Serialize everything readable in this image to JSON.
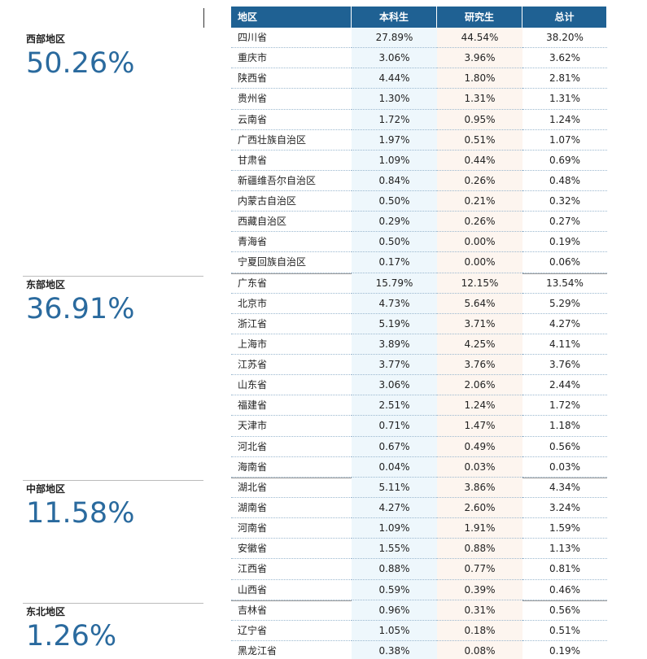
{
  "table": {
    "header": [
      "地区",
      "本科生",
      "研究生",
      "总计"
    ],
    "groups": [
      {
        "name": "西部地区",
        "share": "50.26%",
        "rows": [
          [
            "四川省",
            "27.89%",
            "44.54%",
            "38.20%"
          ],
          [
            "重庆市",
            "3.06%",
            "3.96%",
            "3.62%"
          ],
          [
            "陕西省",
            "4.44%",
            "1.80%",
            "2.81%"
          ],
          [
            "贵州省",
            "1.30%",
            "1.31%",
            "1.31%"
          ],
          [
            "云南省",
            "1.72%",
            "0.95%",
            "1.24%"
          ],
          [
            "广西壮族自治区",
            "1.97%",
            "0.51%",
            "1.07%"
          ],
          [
            "甘肃省",
            "1.09%",
            "0.44%",
            "0.69%"
          ],
          [
            "新疆维吾尔自治区",
            "0.84%",
            "0.26%",
            "0.48%"
          ],
          [
            "内蒙古自治区",
            "0.50%",
            "0.21%",
            "0.32%"
          ],
          [
            "西藏自治区",
            "0.29%",
            "0.26%",
            "0.27%"
          ],
          [
            "青海省",
            "0.50%",
            "0.00%",
            "0.19%"
          ],
          [
            "宁夏回族自治区",
            "0.17%",
            "0.00%",
            "0.06%"
          ]
        ]
      },
      {
        "name": "东部地区",
        "share": "36.91%",
        "rows": [
          [
            "广东省",
            "15.79%",
            "12.15%",
            "13.54%"
          ],
          [
            "北京市",
            "4.73%",
            "5.64%",
            "5.29%"
          ],
          [
            "浙江省",
            "5.19%",
            "3.71%",
            "4.27%"
          ],
          [
            "上海市",
            "3.89%",
            "4.25%",
            "4.11%"
          ],
          [
            "江苏省",
            "3.77%",
            "3.76%",
            "3.76%"
          ],
          [
            "山东省",
            "3.06%",
            "2.06%",
            "2.44%"
          ],
          [
            "福建省",
            "2.51%",
            "1.24%",
            "1.72%"
          ],
          [
            "天津市",
            "0.71%",
            "1.47%",
            "1.18%"
          ],
          [
            "河北省",
            "0.67%",
            "0.49%",
            "0.56%"
          ],
          [
            "海南省",
            "0.04%",
            "0.03%",
            "0.03%"
          ]
        ]
      },
      {
        "name": "中部地区",
        "share": "11.58%",
        "rows": [
          [
            "湖北省",
            "5.11%",
            "3.86%",
            "4.34%"
          ],
          [
            "湖南省",
            "4.27%",
            "2.60%",
            "3.24%"
          ],
          [
            "河南省",
            "1.09%",
            "1.91%",
            "1.59%"
          ],
          [
            "安徽省",
            "1.55%",
            "0.88%",
            "1.13%"
          ],
          [
            "江西省",
            "0.88%",
            "0.77%",
            "0.81%"
          ],
          [
            "山西省",
            "0.59%",
            "0.39%",
            "0.46%"
          ]
        ]
      },
      {
        "name": "东北地区",
        "share": "1.26%",
        "rows": [
          [
            "吉林省",
            "0.96%",
            "0.31%",
            "0.56%"
          ],
          [
            "辽宁省",
            "1.05%",
            "0.18%",
            "0.51%"
          ],
          [
            "黑龙江省",
            "0.38%",
            "0.08%",
            "0.19%"
          ]
        ]
      }
    ]
  }
}
